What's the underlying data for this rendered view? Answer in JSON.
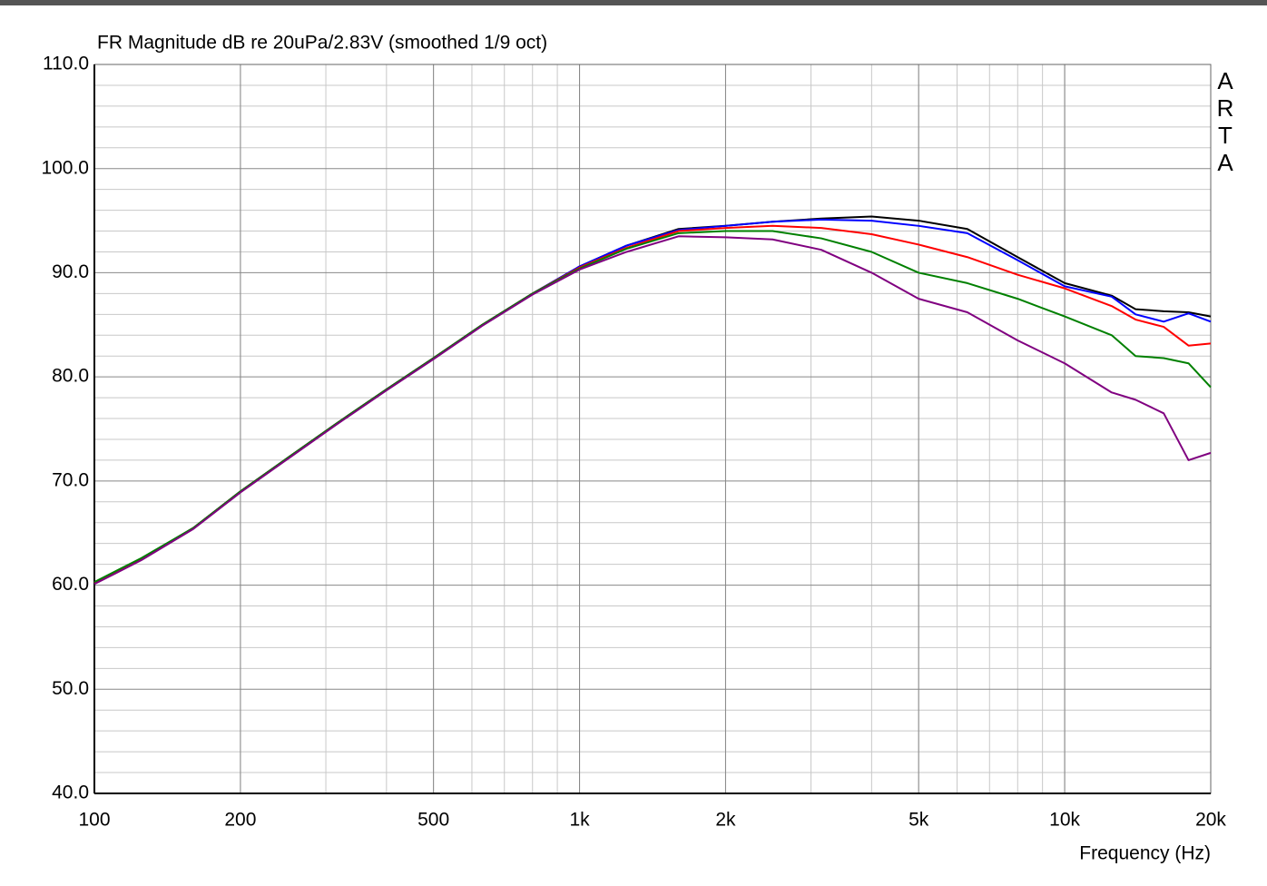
{
  "chart_data": {
    "type": "line",
    "title": "FR Magnitude dB re 20uPa/2.83V (smoothed 1/9 oct)",
    "xlabel": "Frequency (Hz)",
    "watermark": "ARTA",
    "xscale": "log",
    "grid": true,
    "minor_grid": true,
    "xlim": [
      100,
      20000
    ],
    "ylim": [
      40,
      110
    ],
    "xticks": [
      {
        "value": 100,
        "label": "100"
      },
      {
        "value": 200,
        "label": "200"
      },
      {
        "value": 500,
        "label": "500"
      },
      {
        "value": 1000,
        "label": "1k"
      },
      {
        "value": 2000,
        "label": "2k"
      },
      {
        "value": 5000,
        "label": "5k"
      },
      {
        "value": 10000,
        "label": "10k"
      },
      {
        "value": 20000,
        "label": "20k"
      }
    ],
    "yticks": [
      {
        "value": 40,
        "label": "40.0"
      },
      {
        "value": 50,
        "label": "50.0"
      },
      {
        "value": 60,
        "label": "60.0"
      },
      {
        "value": 70,
        "label": "70.0"
      },
      {
        "value": 80,
        "label": "80.0"
      },
      {
        "value": 90,
        "label": "90.0"
      },
      {
        "value": 100,
        "label": "100.0"
      },
      {
        "value": 110,
        "label": "110.0"
      }
    ],
    "x": [
      100,
      125,
      160,
      200,
      250,
      315,
      400,
      500,
      630,
      800,
      1000,
      1250,
      1600,
      2000,
      2500,
      3150,
      4000,
      5000,
      6300,
      8000,
      10000,
      12500,
      14000,
      16000,
      18000,
      20000
    ],
    "series": [
      {
        "color": "#000000",
        "values": [
          60.2,
          62.5,
          65.5,
          69.0,
          72.2,
          75.5,
          78.8,
          81.8,
          85.0,
          88.0,
          90.6,
          92.6,
          94.2,
          94.5,
          94.9,
          95.2,
          95.4,
          95.0,
          94.2,
          91.5,
          89.0,
          87.8,
          86.5,
          86.3,
          86.2,
          85.8
        ]
      },
      {
        "color": "#0000ff",
        "values": [
          60.2,
          62.5,
          65.5,
          69.0,
          72.2,
          75.5,
          78.8,
          81.8,
          85.0,
          88.0,
          90.6,
          92.6,
          94.1,
          94.5,
          94.9,
          95.1,
          95.0,
          94.5,
          93.8,
          91.2,
          88.7,
          87.7,
          86.0,
          85.3,
          86.1,
          85.3
        ]
      },
      {
        "color": "#ff0000",
        "values": [
          60.2,
          62.5,
          65.5,
          69.0,
          72.2,
          75.5,
          78.8,
          81.8,
          85.0,
          88.0,
          90.5,
          92.4,
          94.0,
          94.3,
          94.5,
          94.3,
          93.7,
          92.7,
          91.5,
          89.8,
          88.5,
          86.8,
          85.5,
          84.8,
          83.0,
          83.2
        ]
      },
      {
        "color": "#008000",
        "values": [
          60.3,
          62.6,
          65.5,
          69.0,
          72.2,
          75.5,
          78.8,
          81.8,
          85.0,
          88.0,
          90.4,
          92.3,
          93.8,
          94.0,
          94.0,
          93.3,
          92.0,
          90.0,
          89.0,
          87.5,
          85.8,
          84.0,
          82.0,
          81.8,
          81.3,
          79.0
        ]
      },
      {
        "color": "#800080",
        "values": [
          60.1,
          62.4,
          65.4,
          68.9,
          72.1,
          75.4,
          78.7,
          81.7,
          84.9,
          87.9,
          90.3,
          92.0,
          93.5,
          93.4,
          93.2,
          92.2,
          90.0,
          87.5,
          86.2,
          83.5,
          81.3,
          78.5,
          77.8,
          76.5,
          72.0,
          72.7
        ]
      }
    ]
  }
}
